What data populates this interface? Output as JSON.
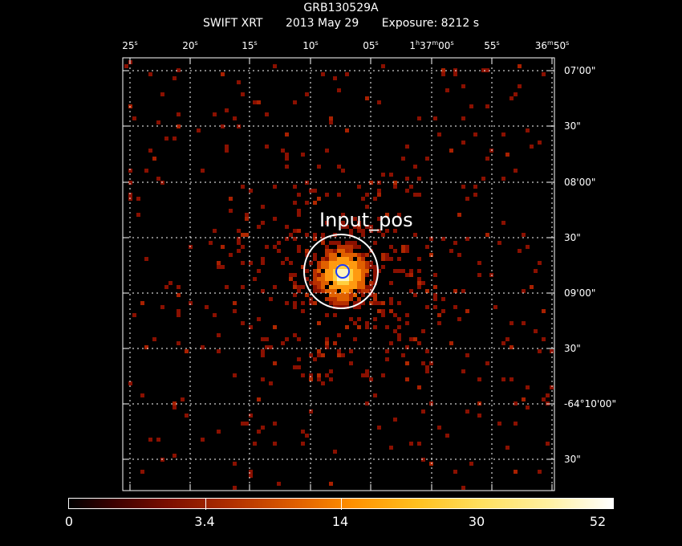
{
  "header": {
    "target": "GRB130529A",
    "instrument": "SWIFT XRT",
    "date": "2013 May 29",
    "exposure": "Exposure: 8212 s"
  },
  "ra_labels": [
    {
      "main": "25",
      "sup": "s",
      "rest": ""
    },
    {
      "main": "20",
      "sup": "s",
      "rest": ""
    },
    {
      "main": "15",
      "sup": "s",
      "rest": ""
    },
    {
      "main": "10",
      "sup": "s",
      "rest": ""
    },
    {
      "main": "05",
      "sup": "s",
      "rest": ""
    },
    {
      "main": "1",
      "sup": "h",
      "rest": "37",
      "sup2": "m",
      "rest2": "00",
      "sup3": "s"
    },
    {
      "main": "55",
      "sup": "s",
      "rest": ""
    },
    {
      "main": "36",
      "sup": "m",
      "rest": "50",
      "sup2": "s"
    }
  ],
  "dec_labels": [
    "07'00\"",
    "30\"",
    "08'00\"",
    "30\"",
    "09'00\"",
    "30\"",
    "-64°10'00\"",
    "30\""
  ],
  "source": {
    "label": "Input_pos"
  },
  "colorbar": {
    "ticks": [
      "0",
      "3.4",
      "14",
      "30",
      "52"
    ],
    "colors": {
      "low": "#000000",
      "mid": "#b03000",
      "high": "#ffffff"
    }
  }
}
